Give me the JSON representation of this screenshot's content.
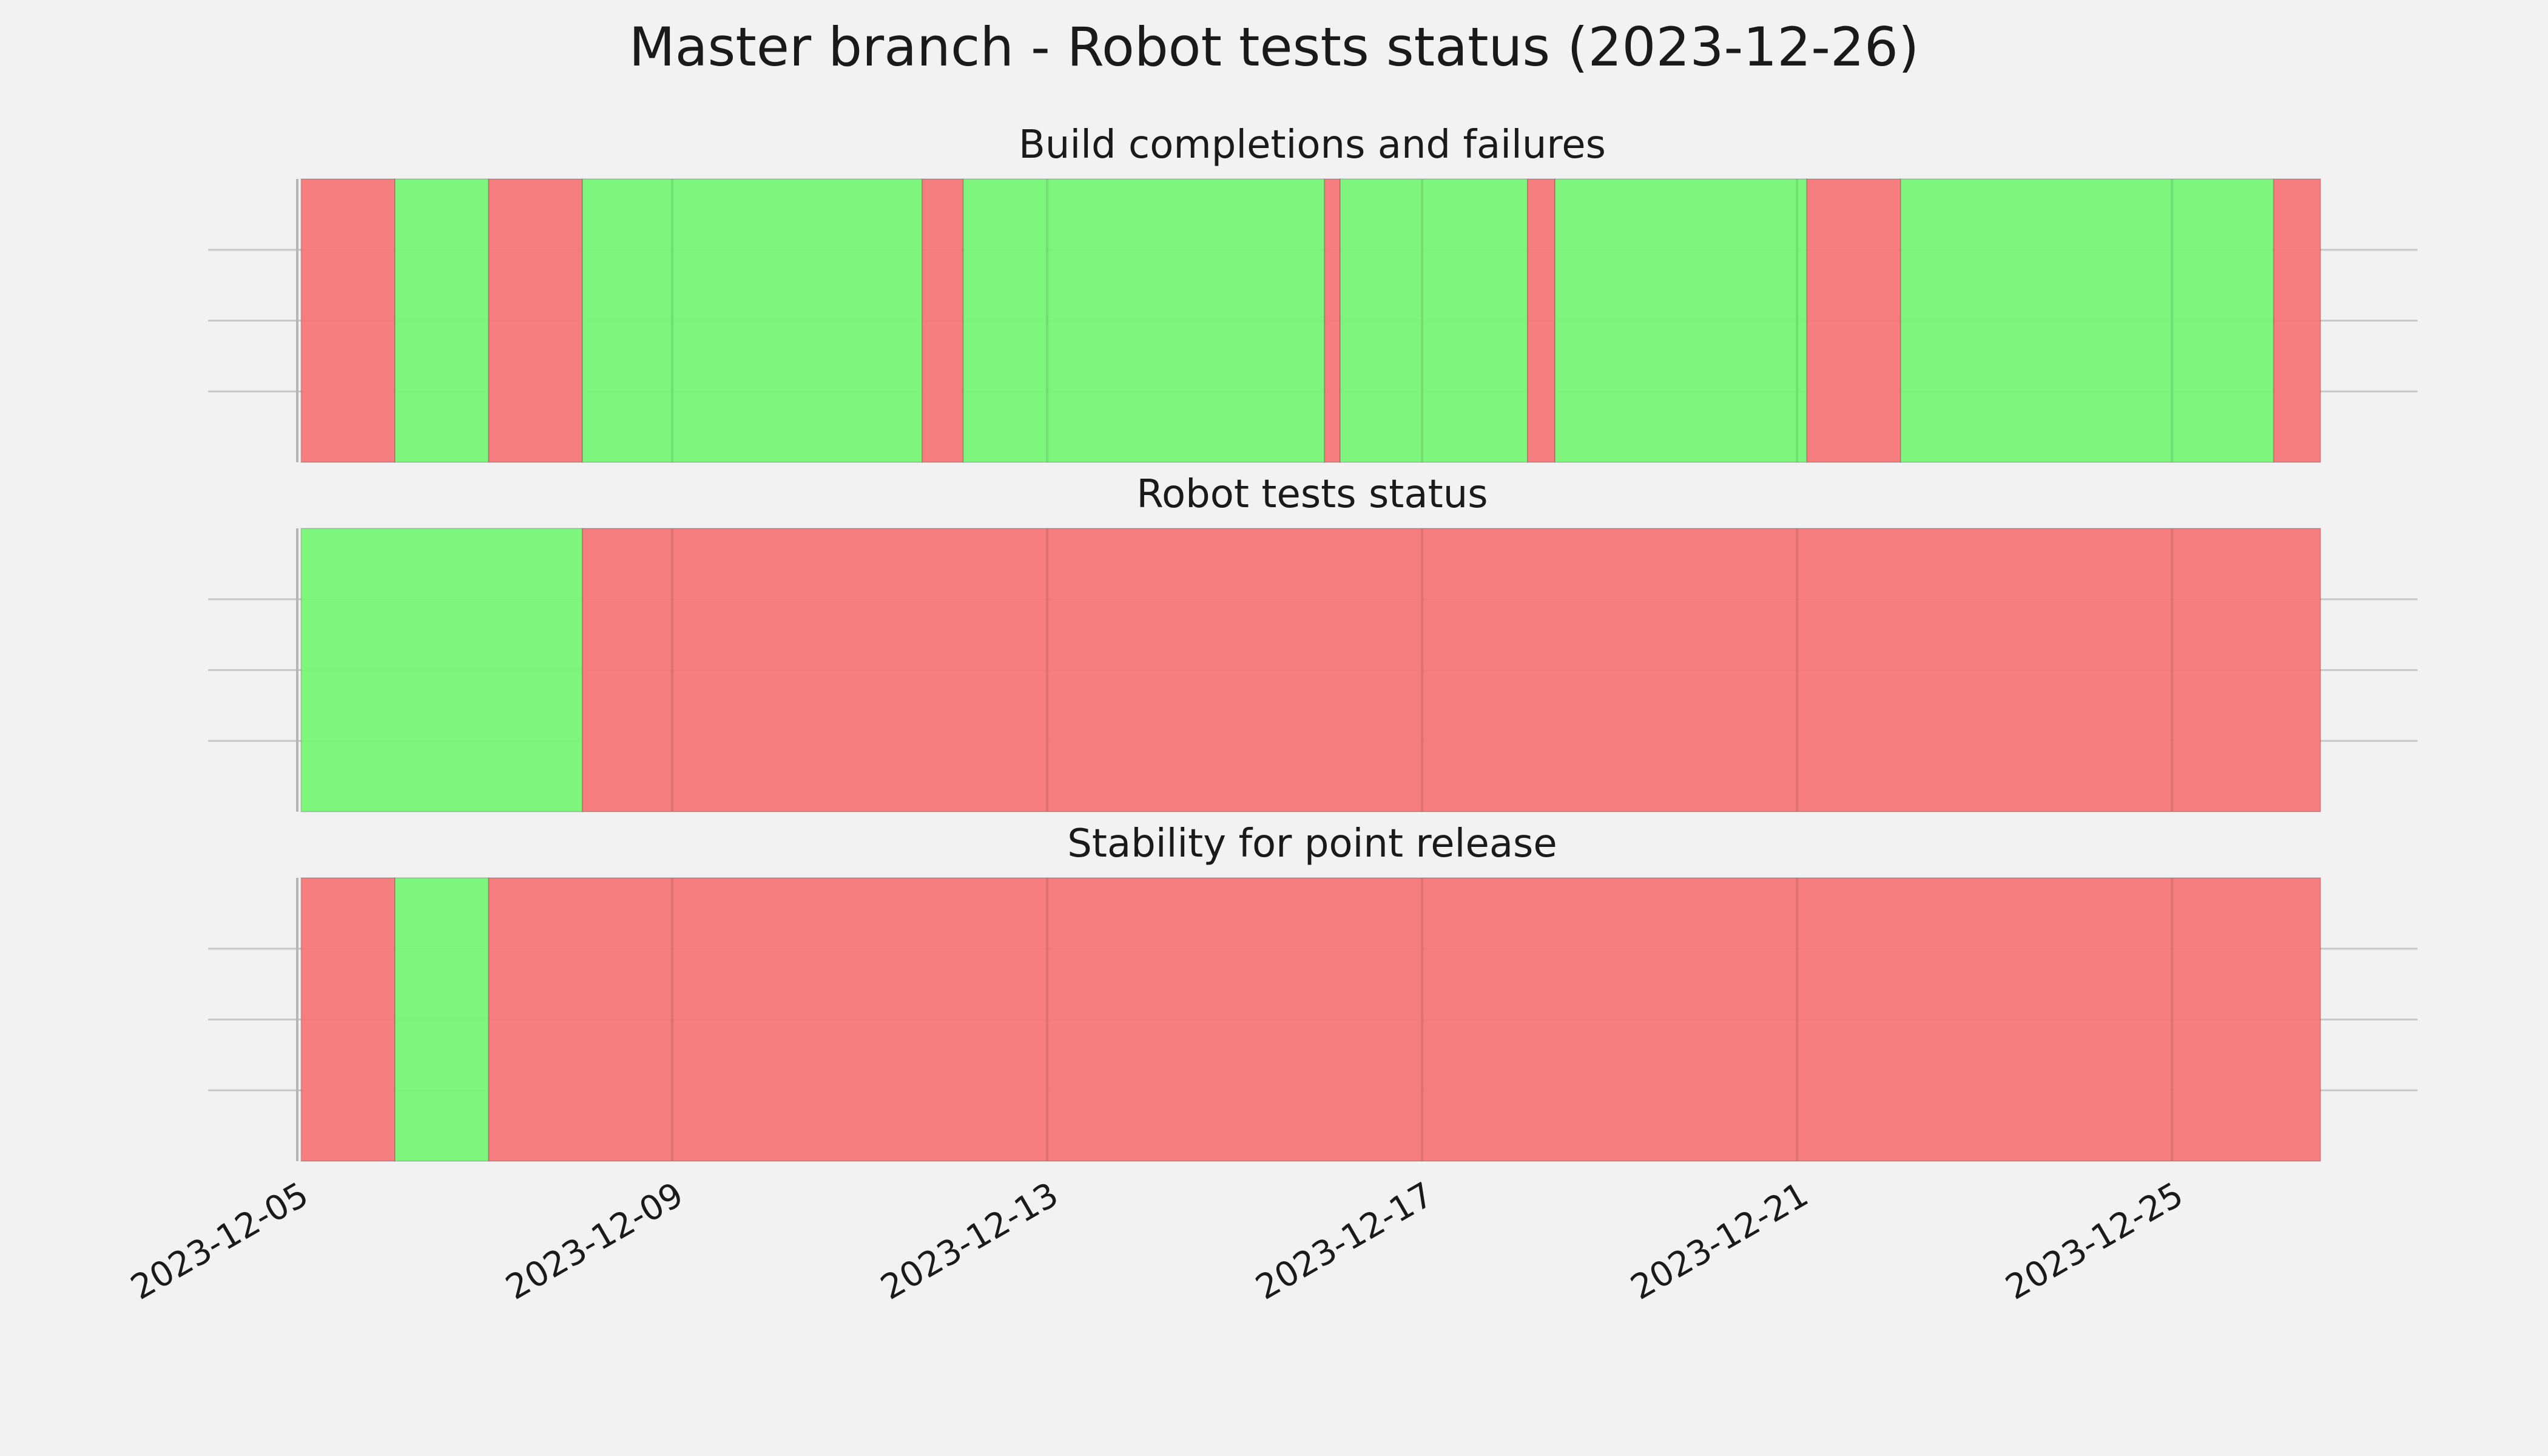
{
  "chart_data": {
    "type": "timeline",
    "title": "Master branch - Robot tests status (2023-12-26)",
    "colors": {
      "pass": "#77f677",
      "fail": "#f67777"
    },
    "x_range": [
      "2023-12-05",
      "2023-12-26T14:00"
    ],
    "x_ticks": [
      "2023-12-05",
      "2023-12-09",
      "2023-12-13",
      "2023-12-17",
      "2023-12-21",
      "2023-12-25"
    ],
    "panels": [
      {
        "title": "Build completions and failures",
        "segments": [
          {
            "start": "2023-12-05T01:00",
            "end": "2023-12-06T01:00",
            "status": "fail"
          },
          {
            "start": "2023-12-06T01:00",
            "end": "2023-12-07T01:00",
            "status": "pass"
          },
          {
            "start": "2023-12-07T01:00",
            "end": "2023-12-08T01:00",
            "status": "fail"
          },
          {
            "start": "2023-12-08T01:00",
            "end": "2023-12-11T16:00",
            "status": "pass"
          },
          {
            "start": "2023-12-11T16:00",
            "end": "2023-12-12T02:30",
            "status": "fail"
          },
          {
            "start": "2023-12-12T02:30",
            "end": "2023-12-15T23:00",
            "status": "pass"
          },
          {
            "start": "2023-12-15T23:00",
            "end": "2023-12-16T03:00",
            "status": "fail"
          },
          {
            "start": "2023-12-16T03:00",
            "end": "2023-12-18T03:00",
            "status": "pass"
          },
          {
            "start": "2023-12-18T03:00",
            "end": "2023-12-18T10:00",
            "status": "fail"
          },
          {
            "start": "2023-12-18T10:00",
            "end": "2023-12-21T02:30",
            "status": "pass"
          },
          {
            "start": "2023-12-21T02:30",
            "end": "2023-12-22T02:30",
            "status": "fail"
          },
          {
            "start": "2023-12-22T02:30",
            "end": "2023-12-26T02:00",
            "status": "pass"
          },
          {
            "start": "2023-12-26T02:00",
            "end": "2023-12-26T14:00",
            "status": "fail"
          }
        ]
      },
      {
        "title": "Robot tests status",
        "segments": [
          {
            "start": "2023-12-05T01:00",
            "end": "2023-12-08T01:00",
            "status": "pass"
          },
          {
            "start": "2023-12-08T01:00",
            "end": "2023-12-26T14:00",
            "status": "fail"
          }
        ]
      },
      {
        "title": "Stability for point release",
        "segments": [
          {
            "start": "2023-12-05T01:00",
            "end": "2023-12-06T01:00",
            "status": "fail"
          },
          {
            "start": "2023-12-06T01:00",
            "end": "2023-12-07T01:00",
            "status": "pass"
          },
          {
            "start": "2023-12-07T01:00",
            "end": "2023-12-26T14:00",
            "status": "fail"
          }
        ]
      }
    ]
  }
}
